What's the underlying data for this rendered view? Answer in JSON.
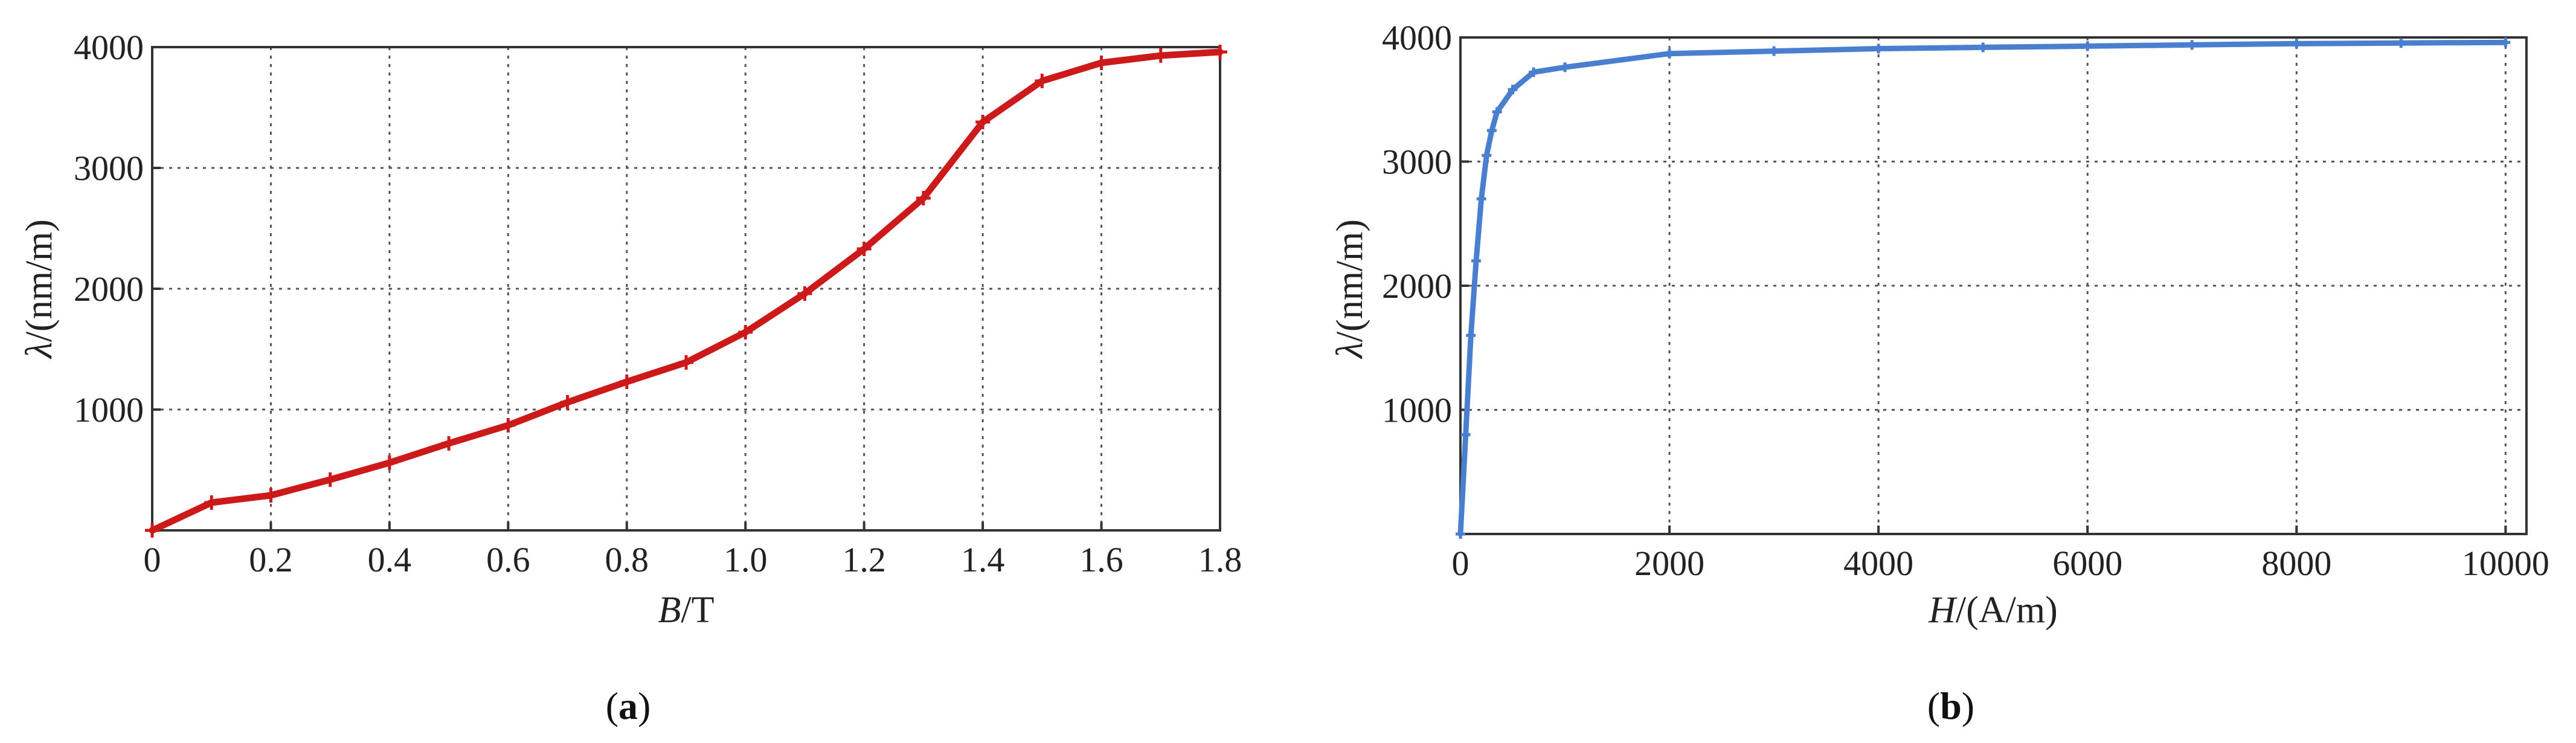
{
  "chart_data": [
    {
      "type": "line",
      "panel_label": "a",
      "xlabel_italic": "B",
      "xlabel_rest": "/T",
      "ylabel_italic": "λ",
      "ylabel_rest": "/(nm/m)",
      "xlim": [
        0,
        1.8
      ],
      "ylim": [
        0,
        4000
      ],
      "xticks": [
        0,
        0.2,
        0.4,
        0.6,
        0.8,
        1.0,
        1.2,
        1.4,
        1.6,
        1.8
      ],
      "xtick_labels": [
        "0",
        "0.2",
        "0.4",
        "0.6",
        "0.8",
        "1.0",
        "1.2",
        "1.4",
        "1.6",
        "1.8"
      ],
      "yticks": [
        1000,
        2000,
        3000,
        4000
      ],
      "ytick_labels": [
        "1000",
        "2000",
        "3000",
        "4000"
      ],
      "grid": true,
      "color": "#cc1a1a",
      "series": [
        {
          "x": [
            0,
            0.1,
            0.2,
            0.3,
            0.4,
            0.5,
            0.6,
            0.7,
            0.8,
            0.9,
            1.0,
            1.1,
            1.2,
            1.3,
            1.4,
            1.5,
            1.6,
            1.7,
            1.8
          ],
          "y": [
            0,
            230,
            290,
            420,
            560,
            720,
            870,
            1060,
            1230,
            1390,
            1640,
            1960,
            2330,
            2750,
            3380,
            3720,
            3870,
            3930,
            3960
          ]
        }
      ]
    },
    {
      "type": "line",
      "panel_label": "b",
      "xlabel_italic": "H",
      "xlabel_rest": "/(A/m)",
      "ylabel_italic": "λ",
      "ylabel_rest": "/(nm/m)",
      "xlim": [
        0,
        10200
      ],
      "ylim": [
        0,
        4000
      ],
      "xticks": [
        0,
        2000,
        4000,
        6000,
        8000,
        10000
      ],
      "xtick_labels": [
        "0",
        "2000",
        "4000",
        "6000",
        "8000",
        "10000"
      ],
      "yticks": [
        1000,
        2000,
        3000,
        4000
      ],
      "ytick_labels": [
        "1000",
        "2000",
        "3000",
        "4000"
      ],
      "grid": true,
      "color": "#4a7fcf",
      "series": [
        {
          "x": [
            0,
            50,
            100,
            150,
            200,
            250,
            300,
            350,
            500,
            700,
            1000,
            2000,
            3000,
            4000,
            5000,
            6000,
            7000,
            8000,
            9000,
            10000
          ],
          "y": [
            0,
            800,
            1600,
            2200,
            2700,
            3050,
            3250,
            3400,
            3580,
            3720,
            3760,
            3870,
            3890,
            3910,
            3920,
            3930,
            3940,
            3950,
            3955,
            3960
          ]
        }
      ]
    }
  ]
}
